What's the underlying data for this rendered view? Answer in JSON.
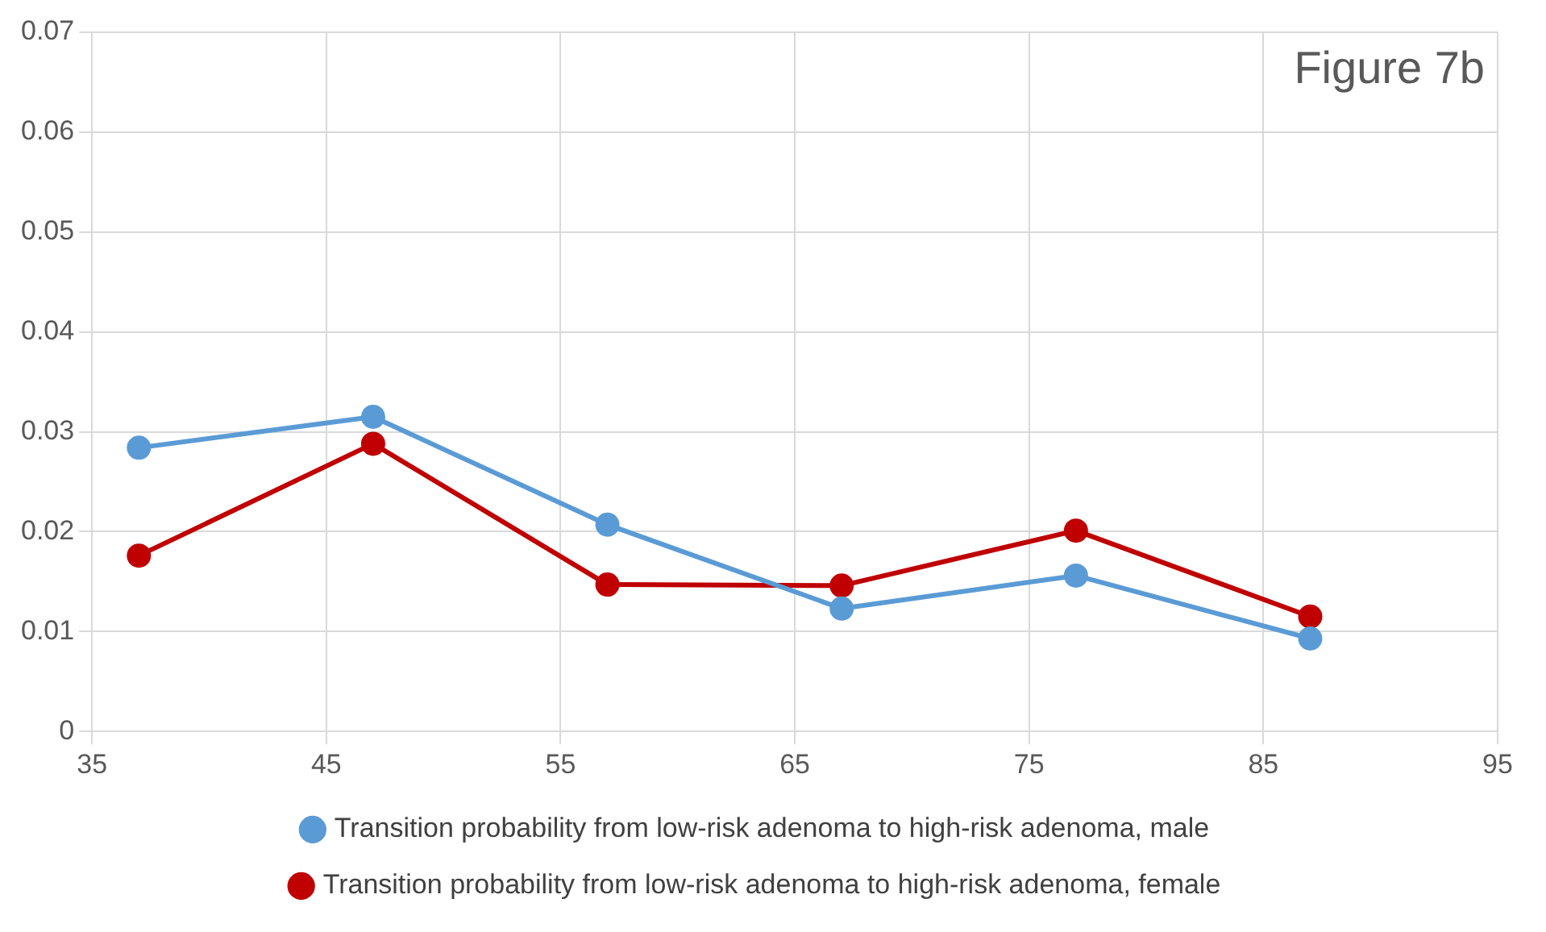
{
  "chart_data": {
    "type": "line",
    "x": [
      37,
      47,
      57,
      67,
      77,
      87
    ],
    "series": [
      {
        "name": "Transition probability from low-risk adenoma to high-risk adenoma, male",
        "color": "#5b9bd5",
        "values": [
          0.0284,
          0.0315,
          0.0207,
          0.0123,
          0.0156,
          0.0093
        ]
      },
      {
        "name": "Transition probability from low-risk adenoma to high-risk adenoma, female",
        "color": "#c00000",
        "values": [
          0.0176,
          0.0288,
          0.0147,
          0.0146,
          0.0201,
          0.0115
        ]
      }
    ],
    "xlim": [
      35,
      95
    ],
    "xticks": [
      35,
      45,
      55,
      65,
      75,
      85,
      95
    ],
    "ylim": [
      0,
      0.07
    ],
    "yticks": [
      0,
      0.01,
      0.02,
      0.03,
      0.04,
      0.05,
      0.06,
      0.07
    ],
    "grid": true,
    "legend": "bottom",
    "marker": "circle",
    "line_style": "solid",
    "annotations": [
      "Figure 7b"
    ]
  }
}
